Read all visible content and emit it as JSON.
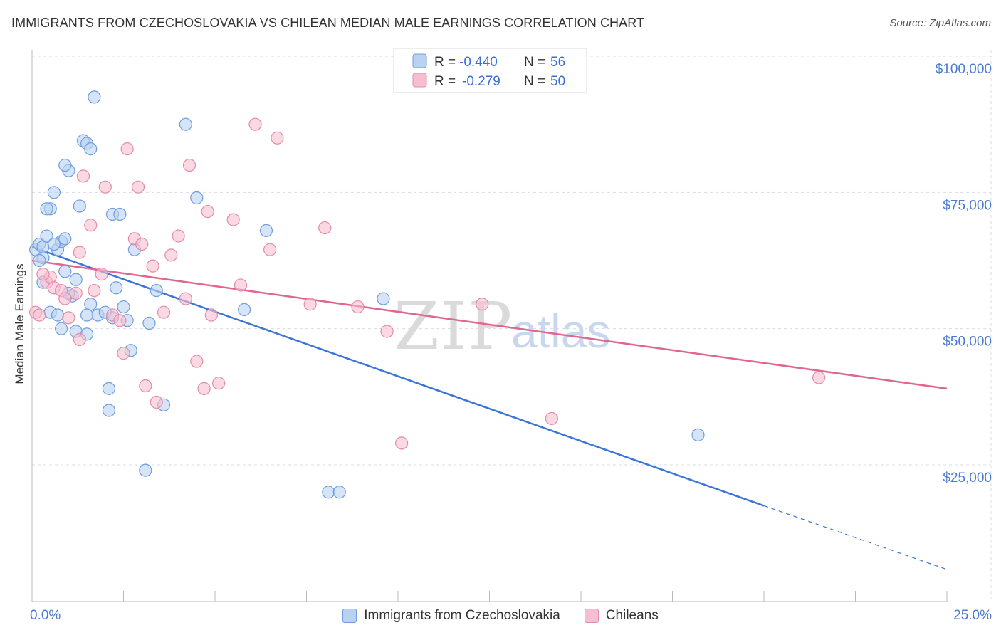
{
  "title": "IMMIGRANTS FROM CZECHOSLOVAKIA VS CHILEAN MEDIAN MALE EARNINGS CORRELATION CHART",
  "source": "Source: ZipAtlas.com",
  "watermark": {
    "zip": "ZIP",
    "atlas": "atlas"
  },
  "colors": {
    "blue": "#3a76d6",
    "blue_fill": "#b9d2f2",
    "pink": "#e0658f",
    "pink_fill": "#f6bfd1",
    "axis_label": "#4a7bd0",
    "grid": "#d8dde6"
  },
  "stats_legend": {
    "blue": {
      "r_label": "R =",
      "r_value": "-0.440",
      "n_label": "N =",
      "n_value": "56"
    },
    "pink": {
      "r_label": "R =",
      "r_value": "-0.279",
      "n_label": "N =",
      "n_value": "50"
    }
  },
  "chart_data": {
    "type": "scatter",
    "title": "IMMIGRANTS FROM CZECHOSLOVAKIA VS CHILEAN MEDIAN MALE EARNINGS CORRELATION CHART",
    "xlabel": "",
    "ylabel": "Median Male Earnings",
    "xlim": [
      0,
      25
    ],
    "ylim": [
      0,
      105000
    ],
    "x_tick_labels": [
      "0.0%",
      "25.0%"
    ],
    "y_ticks": [
      25000,
      50000,
      75000,
      100000
    ],
    "y_tick_labels": [
      "$25,000",
      "$50,000",
      "$75,000",
      "$100,000"
    ],
    "grid": true,
    "series": [
      {
        "name": "Immigrants from Czechoslovakia",
        "color": "#3a76d6",
        "points": [
          [
            0.1,
            64500
          ],
          [
            0.2,
            65500
          ],
          [
            0.3,
            63000
          ],
          [
            0.3,
            65000
          ],
          [
            0.4,
            67000
          ],
          [
            0.5,
            72000
          ],
          [
            0.6,
            75000
          ],
          [
            0.7,
            64500
          ],
          [
            0.8,
            66000
          ],
          [
            0.9,
            60500
          ],
          [
            0.9,
            66500
          ],
          [
            1.0,
            79000
          ],
          [
            0.9,
            80000
          ],
          [
            1.1,
            56000
          ],
          [
            1.2,
            59000
          ],
          [
            1.3,
            72500
          ],
          [
            1.4,
            84500
          ],
          [
            1.5,
            84000
          ],
          [
            1.6,
            83000
          ],
          [
            1.7,
            92500
          ],
          [
            2.2,
            71000
          ],
          [
            2.4,
            71000
          ],
          [
            2.3,
            57500
          ],
          [
            2.8,
            64500
          ],
          [
            3.4,
            57000
          ],
          [
            0.4,
            72000
          ],
          [
            0.5,
            53000
          ],
          [
            0.7,
            52500
          ],
          [
            0.8,
            50000
          ],
          [
            1.2,
            49500
          ],
          [
            1.5,
            49000
          ],
          [
            1.6,
            54500
          ],
          [
            1.8,
            52500
          ],
          [
            2.0,
            53000
          ],
          [
            2.2,
            52000
          ],
          [
            2.5,
            54000
          ],
          [
            2.6,
            51500
          ],
          [
            3.2,
            51000
          ],
          [
            2.7,
            46000
          ],
          [
            2.1,
            39000
          ],
          [
            2.1,
            35000
          ],
          [
            3.6,
            36000
          ],
          [
            3.1,
            24000
          ],
          [
            4.2,
            87500
          ],
          [
            4.5,
            74000
          ],
          [
            6.4,
            68000
          ],
          [
            5.8,
            53500
          ],
          [
            9.6,
            55500
          ],
          [
            8.1,
            20000
          ],
          [
            8.4,
            20000
          ],
          [
            18.2,
            30500
          ],
          [
            0.3,
            58500
          ],
          [
            1.0,
            56500
          ],
          [
            1.5,
            52500
          ],
          [
            0.2,
            62500
          ],
          [
            0.6,
            65500
          ]
        ]
      },
      {
        "name": "Chileans",
        "color": "#e0658f",
        "points": [
          [
            0.1,
            53000
          ],
          [
            0.2,
            52500
          ],
          [
            0.4,
            58500
          ],
          [
            0.5,
            59500
          ],
          [
            0.6,
            57500
          ],
          [
            0.8,
            57000
          ],
          [
            0.9,
            55500
          ],
          [
            1.0,
            52000
          ],
          [
            1.2,
            56500
          ],
          [
            1.3,
            64000
          ],
          [
            1.4,
            78000
          ],
          [
            1.6,
            69000
          ],
          [
            1.7,
            57000
          ],
          [
            1.9,
            60000
          ],
          [
            2.0,
            76000
          ],
          [
            2.2,
            52500
          ],
          [
            2.4,
            51500
          ],
          [
            2.5,
            45500
          ],
          [
            2.6,
            83000
          ],
          [
            2.8,
            66500
          ],
          [
            2.9,
            76000
          ],
          [
            3.0,
            65500
          ],
          [
            3.1,
            39500
          ],
          [
            3.3,
            61500
          ],
          [
            3.4,
            36500
          ],
          [
            3.6,
            53000
          ],
          [
            3.8,
            63500
          ],
          [
            4.0,
            67000
          ],
          [
            4.2,
            55500
          ],
          [
            4.3,
            80000
          ],
          [
            4.5,
            44000
          ],
          [
            4.7,
            39000
          ],
          [
            4.8,
            71500
          ],
          [
            4.9,
            52500
          ],
          [
            5.1,
            40000
          ],
          [
            5.5,
            70000
          ],
          [
            5.7,
            58000
          ],
          [
            6.1,
            87500
          ],
          [
            6.5,
            64500
          ],
          [
            6.7,
            85000
          ],
          [
            7.6,
            54500
          ],
          [
            8.0,
            68500
          ],
          [
            8.9,
            54000
          ],
          [
            9.7,
            49500
          ],
          [
            10.1,
            29000
          ],
          [
            12.3,
            54500
          ],
          [
            14.2,
            33500
          ],
          [
            21.5,
            41000
          ],
          [
            0.3,
            60000
          ],
          [
            1.3,
            48000
          ]
        ]
      }
    ],
    "trendlines": [
      {
        "series": "Immigrants from Czechoslovakia",
        "x": [
          0,
          20
        ],
        "y": [
          65000,
          17500
        ],
        "dashed_extension_x": [
          20,
          25
        ],
        "dashed_extension_y": [
          17500,
          5800
        ]
      },
      {
        "series": "Chileans",
        "x": [
          0,
          25
        ],
        "y": [
          62500,
          39000
        ]
      }
    ]
  }
}
